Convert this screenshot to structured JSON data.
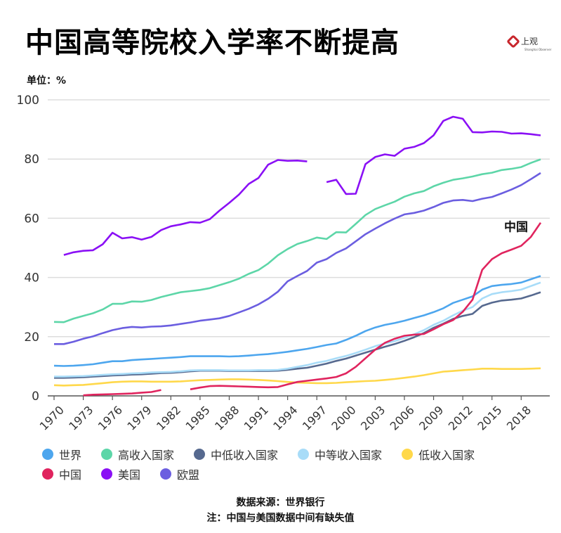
{
  "title": "中国高等院校入学率不断提高",
  "logo": {
    "text": "上观",
    "subtext": "Shanghai Observer"
  },
  "unit_label": "单位：%",
  "footer": {
    "source": "数据来源：世界银行",
    "note": "注：中国与美国数据中间有缺失值"
  },
  "chart_data": {
    "type": "line",
    "title": "中国高等院校入学率不断提高",
    "ylabel": "单位：%",
    "xlabel": "",
    "ylim": [
      0,
      100
    ],
    "xlim": [
      1970,
      2020
    ],
    "grid": true,
    "legend_position": "bottom",
    "y_ticks": [
      "0",
      "20",
      "40",
      "60",
      "80",
      "100"
    ],
    "x_ticks": [
      "1970",
      "1973",
      "1976",
      "1979",
      "1982",
      "1985",
      "1988",
      "1991",
      "1994",
      "1997",
      "2000",
      "2003",
      "2006",
      "2009",
      "2012",
      "2015",
      "2018"
    ],
    "annotation": "中国",
    "x": [
      1970,
      1971,
      1972,
      1973,
      1974,
      1975,
      1976,
      1977,
      1978,
      1979,
      1980,
      1981,
      1982,
      1983,
      1984,
      1985,
      1986,
      1987,
      1988,
      1989,
      1990,
      1991,
      1992,
      1993,
      1994,
      1995,
      1996,
      1997,
      1998,
      1999,
      2000,
      2001,
      2002,
      2003,
      2004,
      2005,
      2006,
      2007,
      2008,
      2009,
      2010,
      2011,
      2012,
      2013,
      2014,
      2015,
      2016,
      2017,
      2018,
      2019,
      2020
    ],
    "series": [
      {
        "name": "世界",
        "color": "#4da6ee",
        "values": [
          10.2,
          10.1,
          10.2,
          10.4,
          10.7,
          11.2,
          11.7,
          11.7,
          12.1,
          12.3,
          12.5,
          12.7,
          12.9,
          13.1,
          13.4,
          13.4,
          13.4,
          13.4,
          13.3,
          13.4,
          13.6,
          13.9,
          14.1,
          14.5,
          14.9,
          15.4,
          15.9,
          16.5,
          17.2,
          17.7,
          18.9,
          20.3,
          21.9,
          23.1,
          24.0,
          24.6,
          25.4,
          26.3,
          27.2,
          28.3,
          29.6,
          31.4,
          32.5,
          33.6,
          35.9,
          37.1,
          37.5,
          37.8,
          38.3,
          39.4,
          40.5
        ]
      },
      {
        "name": "高收入国家",
        "color": "#5dd6a8",
        "values": [
          25.0,
          24.9,
          26.1,
          27.0,
          27.9,
          29.2,
          31.1,
          31.1,
          31.9,
          31.8,
          32.4,
          33.4,
          34.2,
          35.0,
          35.4,
          35.8,
          36.4,
          37.4,
          38.4,
          39.6,
          41.2,
          42.5,
          44.7,
          47.5,
          49.6,
          51.3,
          52.3,
          53.5,
          53.0,
          55.3,
          55.2,
          58.1,
          61.1,
          63.1,
          64.4,
          65.6,
          67.3,
          68.4,
          69.2,
          70.8,
          72.0,
          73.0,
          73.5,
          74.1,
          74.9,
          75.4,
          76.3,
          76.7,
          77.3,
          78.7,
          79.9
        ]
      },
      {
        "name": "中低收入国家",
        "color": "#56698f",
        "values": [
          6.1,
          6.1,
          6.2,
          6.3,
          6.5,
          6.7,
          6.9,
          7.0,
          7.2,
          7.3,
          7.5,
          7.7,
          7.8,
          8.0,
          8.3,
          8.5,
          8.5,
          8.5,
          8.4,
          8.4,
          8.4,
          8.4,
          8.4,
          8.5,
          8.8,
          9.2,
          9.5,
          10.2,
          10.9,
          11.8,
          12.6,
          13.6,
          14.6,
          15.6,
          16.6,
          17.5,
          18.6,
          19.8,
          21.2,
          23.0,
          24.4,
          26.0,
          27.0,
          27.7,
          30.4,
          31.5,
          32.2,
          32.5,
          32.9,
          33.9,
          35.0
        ]
      },
      {
        "name": "中等收入国家",
        "color": "#a8dcf8",
        "values": [
          6.5,
          6.5,
          6.6,
          6.7,
          6.9,
          7.1,
          7.3,
          7.4,
          7.6,
          7.7,
          7.9,
          8.0,
          8.1,
          8.3,
          8.6,
          8.7,
          8.7,
          8.7,
          8.6,
          8.6,
          8.6,
          8.7,
          8.7,
          8.8,
          9.2,
          9.8,
          10.4,
          11.2,
          11.8,
          12.7,
          13.5,
          14.5,
          15.6,
          16.8,
          17.7,
          18.5,
          19.6,
          20.8,
          22.2,
          24.0,
          25.4,
          27.2,
          28.8,
          30.0,
          32.9,
          34.4,
          35.0,
          35.4,
          35.9,
          37.1,
          38.3
        ]
      },
      {
        "name": "低收入国家",
        "color": "#ffd84a",
        "values": [
          3.6,
          3.5,
          3.6,
          3.7,
          4.0,
          4.3,
          4.6,
          4.8,
          4.9,
          4.9,
          4.8,
          4.8,
          4.8,
          4.9,
          5.1,
          5.3,
          5.4,
          5.5,
          5.6,
          5.6,
          5.5,
          5.4,
          5.2,
          5.0,
          4.7,
          4.5,
          4.4,
          4.3,
          4.3,
          4.4,
          4.6,
          4.8,
          5.0,
          5.1,
          5.4,
          5.7,
          6.1,
          6.5,
          7.0,
          7.6,
          8.2,
          8.4,
          8.7,
          8.9,
          9.2,
          9.2,
          9.1,
          9.1,
          9.1,
          9.2,
          9.3
        ]
      },
      {
        "name": "中国",
        "color": "#e0245e",
        "values": [
          null,
          null,
          null,
          0.2,
          0.4,
          0.5,
          0.6,
          0.7,
          0.8,
          1.1,
          1.3,
          2.0,
          null,
          null,
          2.2,
          2.8,
          3.3,
          3.4,
          3.3,
          3.2,
          3.1,
          3.0,
          2.9,
          3.0,
          3.9,
          4.7,
          5.1,
          5.5,
          5.9,
          6.4,
          7.6,
          9.8,
          12.7,
          15.6,
          17.9,
          19.3,
          20.3,
          20.7,
          20.9,
          22.5,
          24.2,
          25.6,
          28.4,
          32.5,
          42.6,
          46.2,
          48.2,
          49.4,
          50.7,
          53.7,
          58.5
        ]
      },
      {
        "name": "美国",
        "color": "#8a10f5",
        "values": [
          null,
          47.6,
          48.5,
          49.0,
          49.2,
          51.2,
          55.1,
          53.2,
          53.6,
          52.8,
          53.7,
          56.0,
          57.3,
          57.9,
          58.7,
          58.5,
          59.7,
          62.6,
          65.2,
          68.0,
          71.6,
          73.6,
          78.1,
          79.7,
          79.4,
          79.5,
          79.2,
          null,
          72.2,
          73.0,
          68.2,
          68.3,
          78.3,
          80.7,
          81.6,
          81.1,
          83.5,
          84.1,
          85.4,
          88.0,
          92.9,
          94.3,
          93.6,
          89.1,
          89.0,
          89.3,
          89.2,
          88.6,
          88.7,
          88.4,
          88.0
        ]
      },
      {
        "name": "欧盟",
        "color": "#6b5ee0",
        "values": [
          17.5,
          17.5,
          18.3,
          19.3,
          20.1,
          21.2,
          22.2,
          22.9,
          23.3,
          23.1,
          23.4,
          23.5,
          23.8,
          24.3,
          24.8,
          25.4,
          25.8,
          26.2,
          27.0,
          28.2,
          29.4,
          30.9,
          32.8,
          35.2,
          38.7,
          40.5,
          42.2,
          45.0,
          46.2,
          48.3,
          49.8,
          52.2,
          54.6,
          56.5,
          58.3,
          59.9,
          61.3,
          61.8,
          62.6,
          63.8,
          65.2,
          66.0,
          66.2,
          65.8,
          66.6,
          67.2,
          68.4,
          69.7,
          71.2,
          73.2,
          75.3
        ]
      }
    ]
  }
}
